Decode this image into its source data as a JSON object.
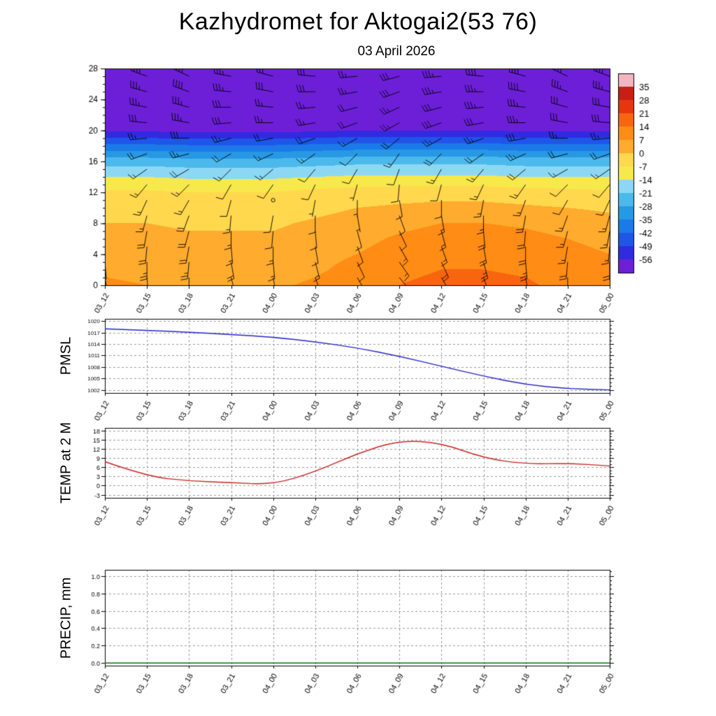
{
  "title": "Kazhydromet for Aktogai2(53 76)",
  "subtitle": "03 April 2026",
  "time_labels": [
    "03_12",
    "03_15",
    "03_18",
    "03_21",
    "04_00",
    "04_03",
    "04_06",
    "04_09",
    "04_12",
    "04_15",
    "04_18",
    "04_21",
    "05_00"
  ],
  "chart_data": [
    {
      "type": "heatmap",
      "name": "temperature-wind-cross-section",
      "ylabel": "",
      "y_ticks": [
        0,
        4,
        8,
        12,
        16,
        20,
        24,
        28
      ],
      "levels_start": 0,
      "levels_step": 2,
      "levels_max": 28,
      "values": [
        [
          8,
          7,
          6,
          6,
          6,
          8,
          11,
          14,
          16,
          16,
          15,
          12,
          10
        ],
        [
          6,
          5,
          4,
          4,
          4,
          6,
          9,
          12,
          14,
          14,
          13,
          10,
          8
        ],
        [
          4,
          4,
          3,
          3,
          3,
          5,
          7,
          10,
          12,
          12,
          11,
          9,
          7
        ],
        [
          2,
          2,
          1,
          1,
          1,
          3,
          5,
          8,
          10,
          10,
          9,
          7,
          5
        ],
        [
          0,
          0,
          -1,
          -1,
          -1,
          1,
          3,
          5,
          7,
          7,
          6,
          4,
          2
        ],
        [
          -3,
          -3,
          -4,
          -4,
          -4,
          -2,
          0,
          1,
          2,
          2,
          1,
          0,
          -1
        ],
        [
          -6,
          -6,
          -7,
          -7,
          -7,
          -5,
          -4,
          -3,
          -3,
          -3,
          -4,
          -5,
          -6
        ],
        [
          -14,
          -14,
          -15,
          -15,
          -15,
          -14,
          -13,
          -13,
          -13,
          -13,
          -14,
          -14,
          -14
        ],
        [
          -24,
          -24,
          -25,
          -25,
          -25,
          -24,
          -23,
          -23,
          -23,
          -23,
          -24,
          -24,
          -24
        ],
        [
          -40,
          -40,
          -41,
          -41,
          -41,
          -40,
          -39,
          -39,
          -39,
          -39,
          -40,
          -40,
          -40
        ],
        [
          -57,
          -57,
          -58,
          -58,
          -58,
          -57,
          -56,
          -56,
          -56,
          -56,
          -57,
          -57,
          -57
        ],
        [
          -59,
          -59,
          -60,
          -60,
          -60,
          -59,
          -59,
          -59,
          -59,
          -59,
          -59,
          -59,
          -59
        ],
        [
          -60,
          -60,
          -61,
          -61,
          -61,
          -60,
          -60,
          -60,
          -60,
          -60,
          -60,
          -60,
          -60
        ],
        [
          -61,
          -61,
          -61,
          -61,
          -61,
          -61,
          -60,
          -60,
          -60,
          -60,
          -61,
          -61,
          -61
        ],
        [
          -62,
          -62,
          -62,
          -62,
          -62,
          -62,
          -61,
          -61,
          -61,
          -61,
          -62,
          -62,
          -62
        ]
      ],
      "colorbar": {
        "tick_labels": [
          35,
          28,
          21,
          14,
          7,
          0,
          -7,
          -14,
          -21,
          -28,
          -35,
          -42,
          -49,
          -56
        ],
        "bounds_min": -63,
        "bounds_step": 7,
        "colors": [
          "#6d1fd8",
          "#2f2be0",
          "#1f55e8",
          "#1b7ae8",
          "#2798e4",
          "#4cb9ec",
          "#8cd8f4",
          "#f7e84b",
          "#ffd84d",
          "#ffab2e",
          "#ff8c14",
          "#f8650f",
          "#e83510",
          "#c81e14",
          "#f2b6c2"
        ]
      },
      "wind": {
        "levels": [
          1,
          3,
          5,
          7,
          9,
          11,
          13,
          15,
          17,
          19,
          21,
          23,
          25,
          27
        ],
        "dirs": [
          [
            170,
            175,
            180,
            165,
            170,
            160,
            150,
            140,
            150,
            160,
            170,
            180,
            175
          ],
          [
            175,
            180,
            185,
            170,
            175,
            165,
            155,
            145,
            155,
            165,
            175,
            185,
            180
          ],
          [
            180,
            185,
            190,
            175,
            180,
            170,
            160,
            150,
            160,
            170,
            180,
            190,
            185
          ],
          [
            185,
            190,
            195,
            180,
            185,
            175,
            165,
            155,
            165,
            175,
            185,
            195,
            190
          ],
          [
            190,
            195,
            200,
            185,
            190,
            180,
            170,
            160,
            170,
            180,
            190,
            200,
            195
          ],
          [
            200,
            205,
            210,
            195,
            200,
            190,
            180,
            170,
            180,
            190,
            200,
            210,
            205
          ],
          [
            215,
            220,
            225,
            210,
            215,
            205,
            195,
            185,
            195,
            205,
            215,
            225,
            220
          ],
          [
            230,
            235,
            240,
            225,
            230,
            220,
            210,
            200,
            210,
            220,
            230,
            240,
            235
          ],
          [
            245,
            250,
            255,
            240,
            245,
            235,
            225,
            215,
            225,
            235,
            245,
            255,
            250
          ],
          [
            260,
            265,
            270,
            255,
            260,
            250,
            240,
            230,
            240,
            250,
            260,
            270,
            265
          ],
          [
            270,
            275,
            280,
            265,
            270,
            260,
            250,
            240,
            250,
            260,
            270,
            280,
            275
          ],
          [
            275,
            280,
            285,
            270,
            275,
            265,
            255,
            245,
            255,
            265,
            275,
            285,
            280
          ],
          [
            280,
            285,
            290,
            275,
            280,
            270,
            260,
            250,
            260,
            270,
            280,
            290,
            285
          ],
          [
            285,
            290,
            295,
            280,
            285,
            275,
            265,
            255,
            265,
            275,
            285,
            295,
            290
          ]
        ],
        "speeds": [
          [
            20,
            20,
            25,
            20,
            15,
            15,
            10,
            15,
            20,
            20,
            25,
            20,
            20
          ],
          [
            20,
            25,
            25,
            20,
            15,
            15,
            10,
            15,
            20,
            25,
            25,
            20,
            20
          ],
          [
            15,
            20,
            20,
            15,
            15,
            10,
            10,
            15,
            15,
            20,
            20,
            15,
            15
          ],
          [
            15,
            20,
            20,
            15,
            10,
            10,
            10,
            10,
            15,
            20,
            20,
            15,
            15
          ],
          [
            15,
            15,
            20,
            15,
            10,
            10,
            5,
            10,
            15,
            15,
            20,
            15,
            15
          ],
          [
            10,
            15,
            15,
            10,
            2,
            5,
            5,
            10,
            10,
            15,
            15,
            10,
            10
          ],
          [
            10,
            15,
            15,
            10,
            10,
            10,
            5,
            10,
            10,
            15,
            15,
            10,
            10
          ],
          [
            15,
            15,
            20,
            15,
            15,
            10,
            10,
            10,
            15,
            15,
            20,
            15,
            15
          ],
          [
            20,
            20,
            25,
            20,
            15,
            15,
            10,
            15,
            20,
            20,
            25,
            20,
            20
          ],
          [
            25,
            25,
            30,
            25,
            20,
            20,
            15,
            20,
            25,
            25,
            30,
            25,
            25
          ],
          [
            30,
            30,
            35,
            30,
            25,
            25,
            20,
            25,
            30,
            30,
            35,
            30,
            30
          ],
          [
            30,
            35,
            35,
            30,
            25,
            25,
            20,
            25,
            30,
            35,
            35,
            30,
            30
          ],
          [
            35,
            35,
            40,
            35,
            30,
            30,
            25,
            30,
            35,
            35,
            40,
            35,
            35
          ],
          [
            35,
            40,
            40,
            35,
            30,
            30,
            25,
            30,
            35,
            40,
            40,
            35,
            35
          ]
        ]
      }
    },
    {
      "type": "line",
      "name": "pmsl",
      "ylabel": "PMSL",
      "color": "#2222cc",
      "y_ticks": [
        1002,
        1005,
        1008,
        1011,
        1014,
        1017,
        1020
      ],
      "y_tick_labels": [
        "1002",
        "1005",
        "1008",
        "1011",
        "1014",
        "1017",
        "1020"
      ],
      "ylim": [
        1001.2,
        1020.6
      ],
      "minor_step": 1,
      "values": [
        1018,
        1017.6,
        1017.1,
        1016.5,
        1015.8,
        1014.6,
        1013,
        1010.8,
        1008.2,
        1005.6,
        1003.4,
        1002.3,
        1002
      ]
    },
    {
      "type": "line",
      "name": "temp-2m",
      "ylabel": "TEMP at 2 M",
      "color": "#cc2222",
      "y_ticks": [
        -3,
        0,
        3,
        6,
        9,
        12,
        15,
        18
      ],
      "y_tick_labels": [
        "-3",
        "0",
        "3",
        "6",
        "9",
        "12",
        "15",
        "18"
      ],
      "ylim": [
        -4,
        18.8
      ],
      "minor_step": 1,
      "values": [
        7.8,
        3,
        1.5,
        1,
        0.3,
        4.5,
        10.5,
        14.8,
        13.9,
        9,
        7,
        7.3,
        6.4
      ]
    },
    {
      "type": "line",
      "name": "precip",
      "ylabel": "PRECIP, mm",
      "color": "#007700",
      "y_ticks": [
        0,
        0.2,
        0.4,
        0.6,
        0.8,
        1.0
      ],
      "y_tick_labels": [
        "0.0",
        "0.2",
        "0.4",
        "0.6",
        "0.8",
        "1.0"
      ],
      "ylim": [
        -0.03,
        1.07
      ],
      "minor_step": 0.05,
      "values": [
        0,
        0,
        0,
        0,
        0,
        0,
        0,
        0,
        0,
        0,
        0,
        0,
        0
      ]
    }
  ]
}
